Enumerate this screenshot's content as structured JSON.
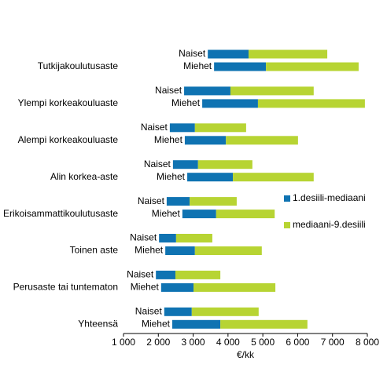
{
  "chart_data": {
    "type": "floating-bar",
    "orientation": "horizontal",
    "categories": [
      "Tutkijakoulutusaste",
      "Ylempi korkeakouluaste",
      "Alempi korkeakouluaste",
      "Alin korkea-aste",
      "Erikoisammattikoulutusaste",
      "Toinen aste",
      "Perusaste tai tuntematon",
      "Yhteensä"
    ],
    "subcategories": [
      "Naiset",
      "Miehet"
    ],
    "series": [
      {
        "name": "1.desiili-mediaani",
        "color": "#0f73b2",
        "values": [
          [
            [
              3420,
              4590
            ],
            [
              3600,
              5090
            ]
          ],
          [
            [
              2740,
              4070
            ],
            [
              3260,
              4860
            ]
          ],
          [
            [
              2330,
              3050
            ],
            [
              2760,
              3940
            ]
          ],
          [
            [
              2420,
              3140
            ],
            [
              2830,
              4140
            ]
          ],
          [
            [
              2240,
              2900
            ],
            [
              2690,
              3660
            ]
          ],
          [
            [
              2020,
              2510
            ],
            [
              2200,
              3050
            ]
          ],
          [
            [
              1930,
              2490
            ],
            [
              2080,
              3010
            ]
          ],
          [
            [
              2170,
              2960
            ],
            [
              2400,
              3780
            ]
          ]
        ]
      },
      {
        "name": "mediaani-9.desiili",
        "color": "#b7d433",
        "values": [
          [
            [
              4590,
              6850
            ],
            [
              5090,
              7750
            ]
          ],
          [
            [
              4070,
              6460
            ],
            [
              4860,
              7930
            ]
          ],
          [
            [
              3050,
              4520
            ],
            [
              3940,
              6010
            ]
          ],
          [
            [
              3140,
              4700
            ],
            [
              4140,
              6460
            ]
          ],
          [
            [
              2900,
              4250
            ],
            [
              3660,
              5340
            ]
          ],
          [
            [
              2510,
              3550
            ],
            [
              3050,
              4970
            ]
          ],
          [
            [
              2490,
              3780
            ],
            [
              3010,
              5360
            ]
          ],
          [
            [
              2960,
              4880
            ],
            [
              3780,
              6280
            ]
          ]
        ]
      }
    ],
    "xlabel": "€/kk",
    "xlim": [
      1000,
      8000
    ],
    "xticks": [
      {
        "value": 1000,
        "label": "1 000"
      },
      {
        "value": 2000,
        "label": "2 000"
      },
      {
        "value": 3000,
        "label": "3 000"
      },
      {
        "value": 4000,
        "label": "4 000"
      },
      {
        "value": 5000,
        "label": "5 000"
      },
      {
        "value": 6000,
        "label": "6 000"
      },
      {
        "value": 7000,
        "label": "7 000"
      },
      {
        "value": 8000,
        "label": "8 000"
      }
    ],
    "grid": false
  }
}
